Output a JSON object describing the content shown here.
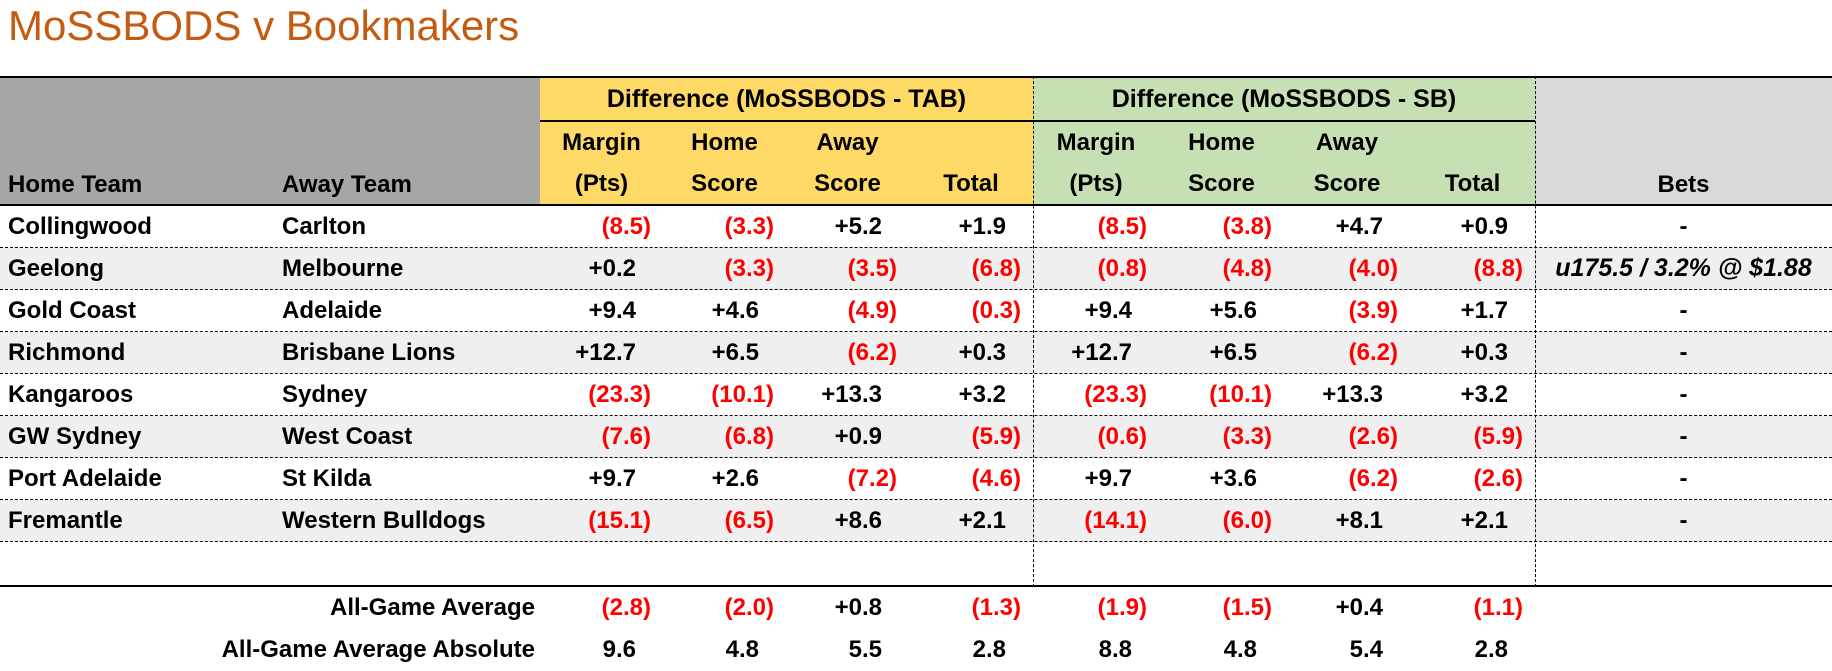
{
  "title": "MoSSBODS v Bookmakers",
  "colors": {
    "title_orange": "#C55A11",
    "header_gray": "#A6A6A6",
    "tab_section_yellow": "#FFD966",
    "sb_section_green": "#C6E0B4",
    "bets_header_gray": "#D9D9D9",
    "row_stripe": "#EFEFEF",
    "negative_value_red": "#FF0000",
    "positive_value_black": "#000000"
  },
  "table": {
    "left_headers": {
      "home": "Home Team",
      "away": "Away Team"
    },
    "sections": [
      {
        "id": "tab",
        "title": "Difference (MoSSBODS - TAB)",
        "columns": [
          {
            "line1": "Margin",
            "line2": "(Pts)"
          },
          {
            "line1": "Home",
            "line2": "Score"
          },
          {
            "line1": "Away",
            "line2": "Score"
          },
          {
            "line1": "",
            "line2": "Total"
          }
        ]
      },
      {
        "id": "sb",
        "title": "Difference (MoSSBODS - SB)",
        "columns": [
          {
            "line1": "Margin",
            "line2": "(Pts)"
          },
          {
            "line1": "Home",
            "line2": "Score"
          },
          {
            "line1": "Away",
            "line2": "Score"
          },
          {
            "line1": "",
            "line2": "Total"
          }
        ]
      }
    ],
    "bets_header": "Bets",
    "rows": [
      {
        "home": "Collingwood",
        "away": "Carlton",
        "tab": [
          "(8.5)",
          "(3.3)",
          "+5.2",
          "+1.9"
        ],
        "sb": [
          "(8.5)",
          "(3.8)",
          "+4.7",
          "+0.9"
        ],
        "bets": "-"
      },
      {
        "home": "Geelong",
        "away": "Melbourne",
        "tab": [
          "+0.2",
          "(3.3)",
          "(3.5)",
          "(6.8)"
        ],
        "sb": [
          "(0.8)",
          "(4.8)",
          "(4.0)",
          "(8.8)"
        ],
        "bets": "u175.5 / 3.2% @ $1.88"
      },
      {
        "home": "Gold Coast",
        "away": "Adelaide",
        "tab": [
          "+9.4",
          "+4.6",
          "(4.9)",
          "(0.3)"
        ],
        "sb": [
          "+9.4",
          "+5.6",
          "(3.9)",
          "+1.7"
        ],
        "bets": "-"
      },
      {
        "home": "Richmond",
        "away": "Brisbane Lions",
        "tab": [
          "+12.7",
          "+6.5",
          "(6.2)",
          "+0.3"
        ],
        "sb": [
          "+12.7",
          "+6.5",
          "(6.2)",
          "+0.3"
        ],
        "bets": "-"
      },
      {
        "home": "Kangaroos",
        "away": "Sydney",
        "tab": [
          "(23.3)",
          "(10.1)",
          "+13.3",
          "+3.2"
        ],
        "sb": [
          "(23.3)",
          "(10.1)",
          "+13.3",
          "+3.2"
        ],
        "bets": "-"
      },
      {
        "home": "GW Sydney",
        "away": "West Coast",
        "tab": [
          "(7.6)",
          "(6.8)",
          "+0.9",
          "(5.9)"
        ],
        "sb": [
          "(0.6)",
          "(3.3)",
          "(2.6)",
          "(5.9)"
        ],
        "bets": "-"
      },
      {
        "home": "Port Adelaide",
        "away": "St Kilda",
        "tab": [
          "+9.7",
          "+2.6",
          "(7.2)",
          "(4.6)"
        ],
        "sb": [
          "+9.7",
          "+3.6",
          "(6.2)",
          "(2.6)"
        ],
        "bets": "-"
      },
      {
        "home": "Fremantle",
        "away": "Western Bulldogs",
        "tab": [
          "(15.1)",
          "(6.5)",
          "+8.6",
          "+2.1"
        ],
        "sb": [
          "(14.1)",
          "(6.0)",
          "+8.1",
          "+2.1"
        ],
        "bets": "-"
      }
    ],
    "summary": [
      {
        "label": "All-Game Average",
        "tab": [
          "(2.8)",
          "(2.0)",
          "+0.8",
          "(1.3)"
        ],
        "sb": [
          "(1.9)",
          "(1.5)",
          "+0.4",
          "(1.1)"
        ]
      },
      {
        "label": "All-Game Average Absolute",
        "tab": [
          "9.6",
          "4.8",
          "5.5",
          "2.8"
        ],
        "sb": [
          "8.8",
          "4.8",
          "5.4",
          "2.8"
        ]
      }
    ]
  },
  "chart_data": {
    "type": "table",
    "title": "MoSSBODS v Bookmakers",
    "columns": [
      "Home Team",
      "Away Team",
      "TAB Margin (Pts)",
      "TAB Home Score",
      "TAB Away Score",
      "TAB Total",
      "SB Margin (Pts)",
      "SB Home Score",
      "SB Away Score",
      "SB Total",
      "Bets"
    ],
    "rows": [
      [
        "Collingwood",
        "Carlton",
        -8.5,
        -3.3,
        5.2,
        1.9,
        -8.5,
        -3.8,
        4.7,
        0.9,
        "-"
      ],
      [
        "Geelong",
        "Melbourne",
        0.2,
        -3.3,
        -3.5,
        -6.8,
        -0.8,
        -4.8,
        -4.0,
        -8.8,
        "u175.5 / 3.2% @ $1.88"
      ],
      [
        "Gold Coast",
        "Adelaide",
        9.4,
        4.6,
        -4.9,
        -0.3,
        9.4,
        5.6,
        -3.9,
        1.7,
        "-"
      ],
      [
        "Richmond",
        "Brisbane Lions",
        12.7,
        6.5,
        -6.2,
        0.3,
        12.7,
        6.5,
        -6.2,
        0.3,
        "-"
      ],
      [
        "Kangaroos",
        "Sydney",
        -23.3,
        -10.1,
        13.3,
        3.2,
        -23.3,
        -10.1,
        13.3,
        3.2,
        "-"
      ],
      [
        "GW Sydney",
        "West Coast",
        -7.6,
        -6.8,
        0.9,
        -5.9,
        -0.6,
        -3.3,
        -2.6,
        -5.9,
        "-"
      ],
      [
        "Port Adelaide",
        "St Kilda",
        9.7,
        2.6,
        -7.2,
        -4.6,
        9.7,
        3.6,
        -6.2,
        -2.6,
        "-"
      ],
      [
        "Fremantle",
        "Western Bulldogs",
        -15.1,
        -6.5,
        8.6,
        2.1,
        -14.1,
        -6.0,
        8.1,
        2.1,
        "-"
      ]
    ],
    "summary_rows": [
      [
        "",
        "All-Game Average",
        -2.8,
        -2.0,
        0.8,
        -1.3,
        -1.9,
        -1.5,
        0.4,
        -1.1,
        ""
      ],
      [
        "",
        "All-Game Average Absolute",
        9.6,
        4.8,
        5.5,
        2.8,
        8.8,
        4.8,
        5.4,
        2.8,
        ""
      ]
    ],
    "notes": "Negative values shown in parentheses and red; positive values prefixed with + in black."
  }
}
